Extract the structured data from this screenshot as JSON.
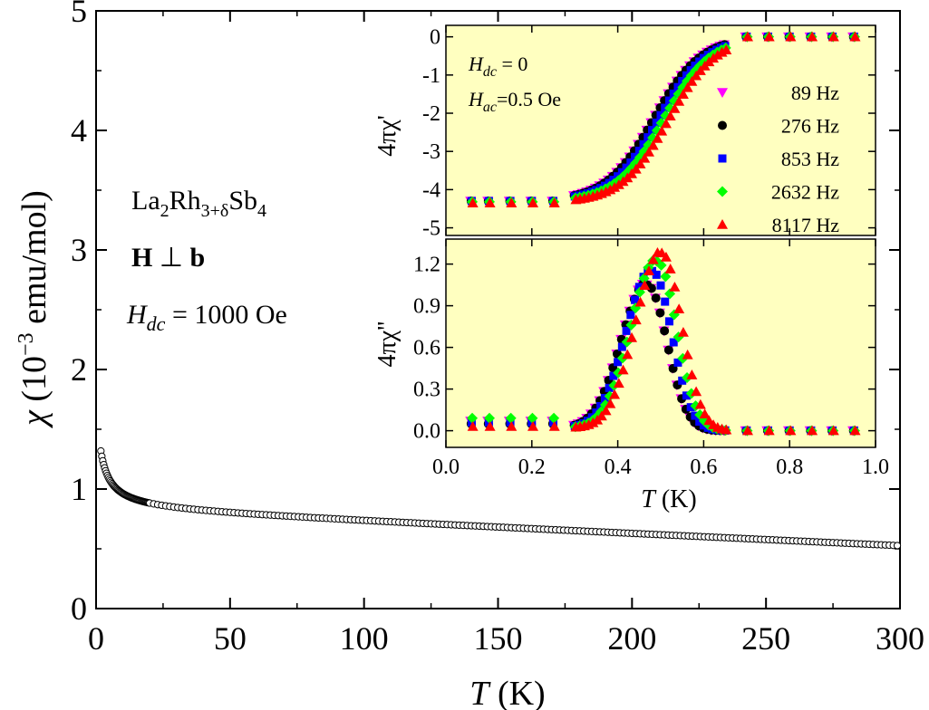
{
  "figure_type": "scientific plot with inset",
  "chart_data": [
    {
      "id": "main",
      "type": "scatter",
      "marker": "open-circle",
      "xlabel": {
        "italic": "T",
        "rest": " (K)"
      },
      "ylabel": {
        "symbol": "χ",
        "rest": " (10",
        "sup": "−3",
        "tail": " emu/mol)"
      },
      "xlim": [
        0,
        300
      ],
      "ylim": [
        0,
        5
      ],
      "xticks": [
        0,
        50,
        100,
        150,
        200,
        250,
        300
      ],
      "xtick_labels": [
        "0",
        "50",
        "100",
        "150",
        "200",
        "250",
        "300"
      ],
      "yticks": [
        0,
        1,
        2,
        3,
        4,
        5
      ],
      "ytick_labels": [
        "0",
        "1",
        "2",
        "3",
        "4",
        "5"
      ],
      "series": [
        {
          "name": "chi",
          "model": "1.8/(T+1.8) + 0.82 - 0.001*T (approximate curve read from figure)",
          "samples": [
            [
              1.8,
              1.47
            ],
            [
              2,
              1.43
            ],
            [
              3,
              1.2
            ],
            [
              4,
              1.1
            ],
            [
              5,
              1.03
            ],
            [
              7,
              0.95
            ],
            [
              10,
              0.89
            ],
            [
              15,
              0.84
            ],
            [
              20,
              0.815
            ],
            [
              50,
              0.77
            ],
            [
              100,
              0.72
            ],
            [
              150,
              0.67
            ],
            [
              200,
              0.63
            ],
            [
              250,
              0.58
            ],
            [
              300,
              0.53
            ]
          ]
        }
      ],
      "annotations": {
        "compound": {
          "a": "La",
          "a_sub": "2",
          "b": "Rh",
          "b_sub": "3+δ",
          "c": "Sb",
          "c_sub": "4"
        },
        "field_dir": {
          "h": "H",
          "perp": " ⊥ ",
          "b": "b"
        },
        "field": {
          "h": "H",
          "h_sub": "dc",
          "rest": " = 1000 Oe"
        }
      }
    },
    {
      "id": "inset_top",
      "type": "scatter",
      "ylabel": "4πχ'",
      "xlim": [
        0,
        1.0
      ],
      "ylim": [
        -5.2,
        0.3
      ],
      "yticks": [
        0,
        -1,
        -2,
        -3,
        -4,
        -5
      ],
      "ytick_labels": [
        "0",
        "-1",
        "-2",
        "-3",
        "-4",
        "-5"
      ],
      "xticks": [
        0,
        0.2,
        0.4,
        0.6,
        0.8,
        1.0
      ],
      "background": "#ffffc0",
      "annotations": {
        "hdc": {
          "h": "H",
          "sub": "dc",
          "rest": " = 0"
        },
        "hac": {
          "h": "H",
          "sub": "ac",
          "rest": "=0.5 Oe"
        }
      },
      "legend": [
        {
          "label": "89 Hz",
          "color": "#ff00ff",
          "marker": "triangle-down"
        },
        {
          "label": "276 Hz",
          "color": "#000000",
          "marker": "circle"
        },
        {
          "label": "853 Hz",
          "color": "#0000ff",
          "marker": "square"
        },
        {
          "label": "2632 Hz",
          "color": "#00ff00",
          "marker": "diamond"
        },
        {
          "label": "8117 Hz",
          "color": "#ff0000",
          "marker": "triangle-up"
        }
      ],
      "series": [
        {
          "name": "89 Hz",
          "tc": 0.485,
          "width": 0.055,
          "low": -4.3
        },
        {
          "name": "276 Hz",
          "tc": 0.485,
          "width": 0.055,
          "low": -4.3
        },
        {
          "name": "853 Hz",
          "tc": 0.495,
          "width": 0.055,
          "low": -4.3
        },
        {
          "name": "2632 Hz",
          "tc": 0.505,
          "width": 0.055,
          "low": -4.32
        },
        {
          "name": "8117 Hz",
          "tc": 0.515,
          "width": 0.055,
          "low": -4.35
        }
      ]
    },
    {
      "id": "inset_bottom",
      "type": "scatter",
      "ylabel": "4πχ''",
      "xlabel": {
        "italic": "T",
        "rest": " (K)"
      },
      "xlim": [
        0,
        1.0
      ],
      "ylim": [
        -0.12,
        1.38
      ],
      "yticks": [
        0.0,
        0.3,
        0.6,
        0.9,
        1.2
      ],
      "ytick_labels": [
        "0.0",
        "0.3",
        "0.6",
        "0.9",
        "1.2"
      ],
      "xticks": [
        0.0,
        0.2,
        0.4,
        0.6,
        0.8,
        1.0
      ],
      "xtick_labels": [
        "0.0",
        "0.2",
        "0.4",
        "0.6",
        "0.8",
        "1.0"
      ],
      "background": "#ffffc0",
      "series": [
        {
          "name": "89 Hz",
          "peak_t": 0.47,
          "peak": 1.05,
          "base": 0.07
        },
        {
          "name": "276 Hz",
          "peak_t": 0.47,
          "peak": 1.05,
          "base": 0.05
        },
        {
          "name": "853 Hz",
          "peak_t": 0.48,
          "peak": 1.15,
          "base": 0.06
        },
        {
          "name": "2632 Hz",
          "peak_t": 0.49,
          "peak": 1.22,
          "base": 0.09
        },
        {
          "name": "8117 Hz",
          "peak_t": 0.5,
          "peak": 1.28,
          "base": 0.03
        }
      ]
    }
  ]
}
